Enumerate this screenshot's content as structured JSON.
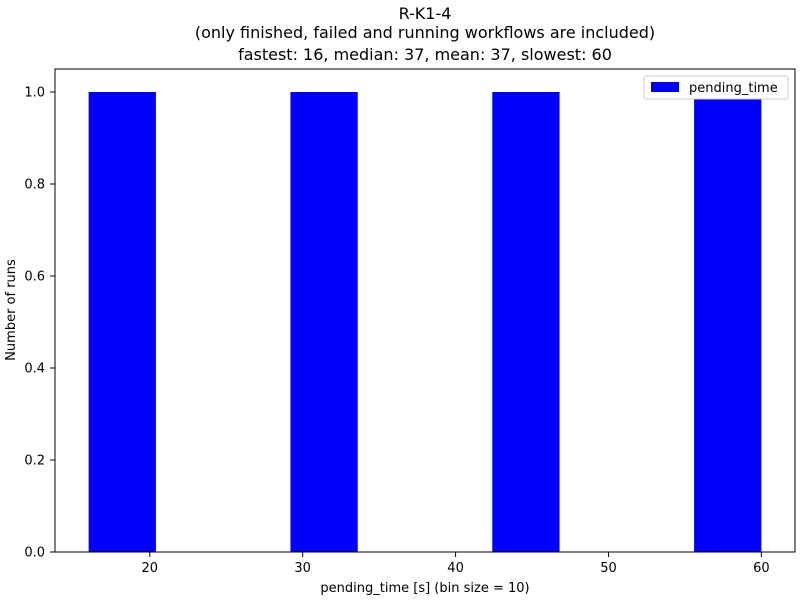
{
  "chart_data": {
    "type": "bar",
    "title_lines": [
      "R-K1-4",
      "(only finished, failed and running workflows are included)",
      "fastest: 16, median: 37, mean: 37, slowest: 60"
    ],
    "xlabel": "pending_time [s] (bin size = 10)",
    "ylabel": "Number of runs",
    "xlim": [
      13.8,
      62.2
    ],
    "ylim": [
      0,
      1.05
    ],
    "x_ticks": [
      20,
      30,
      40,
      50,
      60
    ],
    "y_ticks": [
      0.0,
      0.2,
      0.4,
      0.6,
      0.8,
      1.0
    ],
    "y_tick_labels": [
      "0.0",
      "0.2",
      "0.4",
      "0.6",
      "0.8",
      "1.0"
    ],
    "series": [
      {
        "name": "pending_time",
        "color": "#0000ff",
        "bins": [
          {
            "start": 16.0,
            "end": 20.4,
            "count": 1
          },
          {
            "start": 29.2,
            "end": 33.6,
            "count": 1
          },
          {
            "start": 42.4,
            "end": 46.8,
            "count": 1
          },
          {
            "start": 55.6,
            "end": 60.0,
            "count": 1
          }
        ]
      }
    ],
    "legend": {
      "position": "upper-right",
      "entries": [
        "pending_time"
      ]
    },
    "grid": false
  }
}
